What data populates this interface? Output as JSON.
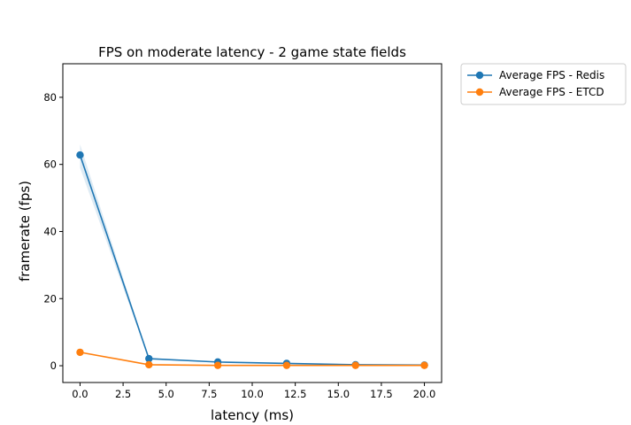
{
  "chart_data": {
    "type": "line",
    "title": "FPS on moderate latency - 2 game state fields",
    "xlabel": "latency (ms)",
    "ylabel": "framerate (fps)",
    "xlim": [
      -1.0,
      21.0
    ],
    "ylim": [
      -5,
      90
    ],
    "xticks": [
      0.0,
      2.5,
      5.0,
      7.5,
      10.0,
      12.5,
      15.0,
      17.5,
      20.0
    ],
    "xtick_labels": [
      "0.0",
      "2.5",
      "5.0",
      "7.5",
      "10.0",
      "12.5",
      "15.0",
      "17.5",
      "20.0"
    ],
    "yticks": [
      0,
      20,
      40,
      60,
      80
    ],
    "ytick_labels": [
      "0",
      "20",
      "40",
      "60",
      "80"
    ],
    "grid": false,
    "legend_placement": "outside-upper-right",
    "x": [
      0,
      4,
      8,
      12,
      16,
      20
    ],
    "series": [
      {
        "name": "Average FPS - Redis",
        "color": "#1f77b4",
        "values": [
          62.8,
          2.1,
          1.1,
          0.7,
          0.3,
          0.2
        ],
        "band_low": [
          59.0,
          1.9,
          1.0,
          0.6,
          0.2,
          0.1
        ],
        "band_high": [
          66.0,
          2.3,
          1.2,
          0.8,
          0.4,
          0.3
        ]
      },
      {
        "name": "Average FPS - ETCD",
        "color": "#ff7f0e",
        "values": [
          4.0,
          0.3,
          0.1,
          0.1,
          0.1,
          0.1
        ]
      }
    ]
  }
}
